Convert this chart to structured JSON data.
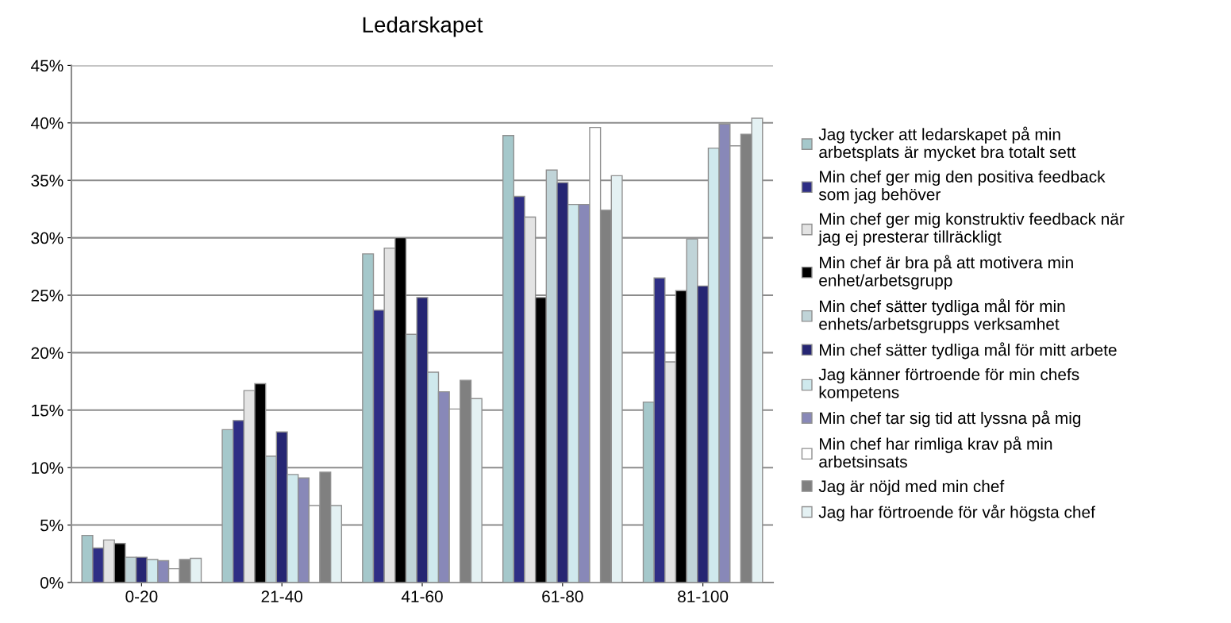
{
  "chart_data": {
    "type": "bar",
    "title": "Ledarskapet",
    "categories": [
      "0-20",
      "21-40",
      "41-60",
      "61-80",
      "81-100"
    ],
    "ylim": [
      0,
      45
    ],
    "yticks": [
      {
        "value": 0,
        "label": "0%"
      },
      {
        "value": 5,
        "label": "5%"
      },
      {
        "value": 10,
        "label": "10%"
      },
      {
        "value": 15,
        "label": "15%"
      },
      {
        "value": 20,
        "label": "20%"
      },
      {
        "value": 25,
        "label": "25%"
      },
      {
        "value": 30,
        "label": "30%"
      },
      {
        "value": 35,
        "label": "35%"
      },
      {
        "value": 40,
        "label": "40%"
      },
      {
        "value": 45,
        "label": "45%"
      }
    ],
    "grid": "y",
    "legend": "right",
    "series": [
      {
        "name": "Jag tycker att ledarskapet på min\narbetsplats är mycket bra totalt sett",
        "color": "#a5c8cb",
        "values": [
          4.1,
          13.3,
          28.6,
          38.9,
          15.7
        ]
      },
      {
        "name": "Min chef ger mig den positiva feedback\nsom jag behöver",
        "color": "#2e2e85",
        "values": [
          3.0,
          14.1,
          23.7,
          33.6,
          26.5
        ]
      },
      {
        "name": "Min chef ger mig konstruktiv feedback när\njag ej presterar tillräckligt",
        "color": "#e3e3e3",
        "values": [
          3.7,
          16.7,
          29.1,
          31.8,
          19.2
        ]
      },
      {
        "name": "Min chef är bra på att motivera min\nenhet/arbetsgrupp",
        "color": "#000000",
        "values": [
          3.4,
          17.3,
          30.0,
          24.8,
          25.4
        ]
      },
      {
        "name": "Min chef sätter tydliga mål för min\nenhets/arbetsgrupps verksamhet",
        "color": "#c0d4d8",
        "values": [
          2.2,
          11.0,
          21.6,
          35.9,
          29.9
        ]
      },
      {
        "name": "Min chef sätter tydliga mål för mitt arbete",
        "color": "#262673",
        "values": [
          2.2,
          13.1,
          24.8,
          34.8,
          25.8
        ]
      },
      {
        "name": "Jag känner förtroende för min chefs\nkompetens",
        "color": "#cfe9ed",
        "values": [
          2.0,
          9.4,
          18.3,
          32.9,
          37.8
        ]
      },
      {
        "name": "Min chef tar sig tid att lyssna på mig",
        "color": "#8888b8",
        "values": [
          1.9,
          9.1,
          16.6,
          32.9,
          39.9
        ]
      },
      {
        "name": "Min chef har rimliga krav på min\narbetsinsats",
        "color": "#ffffff",
        "values": [
          1.2,
          6.7,
          15.1,
          39.6,
          38.0
        ]
      },
      {
        "name": "Jag är nöjd med min chef",
        "color": "#808080",
        "values": [
          2.0,
          9.6,
          17.6,
          32.4,
          39.0
        ]
      },
      {
        "name": "Jag har förtroende för vår högsta chef",
        "color": "#e4f1f3",
        "values": [
          2.1,
          6.7,
          16.0,
          35.4,
          40.4
        ]
      }
    ]
  }
}
